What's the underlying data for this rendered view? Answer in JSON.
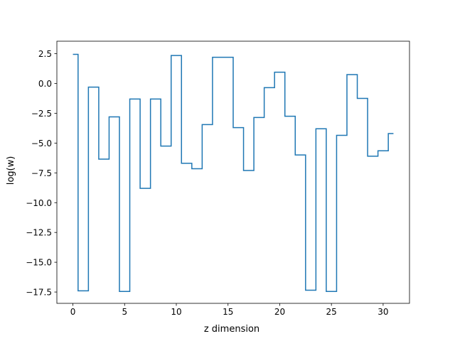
{
  "chart_data": {
    "type": "line",
    "drawstyle": "steps-mid",
    "xlabel": "z dimension",
    "ylabel": "log(w)",
    "xlim": [
      -1.55,
      32.55
    ],
    "ylim": [
      -18.45,
      3.55
    ],
    "xticks": [
      0,
      5,
      10,
      15,
      20,
      25,
      30
    ],
    "xtick_labels": [
      "0",
      "5",
      "10",
      "15",
      "20",
      "25",
      "30"
    ],
    "yticks": [
      2.5,
      0.0,
      -2.5,
      -5.0,
      -7.5,
      -10.0,
      -12.5,
      -15.0,
      -17.5
    ],
    "ytick_labels": [
      "2.5",
      "0.0",
      "−2.5",
      "−5.0",
      "−7.5",
      "−10.0",
      "−12.5",
      "−15.0",
      "−17.5"
    ],
    "grid": false,
    "series": [
      {
        "color": "#1f77b4",
        "x": [
          0,
          1,
          2,
          3,
          4,
          5,
          6,
          7,
          8,
          9,
          10,
          11,
          12,
          13,
          14,
          15,
          16,
          17,
          18,
          19,
          20,
          21,
          22,
          23,
          24,
          25,
          26,
          27,
          28,
          29,
          30,
          31
        ],
        "y": [
          2.45,
          -17.4,
          -0.3,
          -6.35,
          -2.8,
          -17.45,
          -1.3,
          -8.8,
          -1.3,
          -5.25,
          2.35,
          -6.7,
          -7.15,
          -3.45,
          2.2,
          2.2,
          -3.7,
          -7.3,
          -2.85,
          -0.35,
          0.95,
          -2.75,
          -6.0,
          -17.35,
          -3.8,
          -17.45,
          -4.35,
          0.75,
          -1.25,
          -6.1,
          -5.65,
          -4.2
        ]
      }
    ]
  }
}
